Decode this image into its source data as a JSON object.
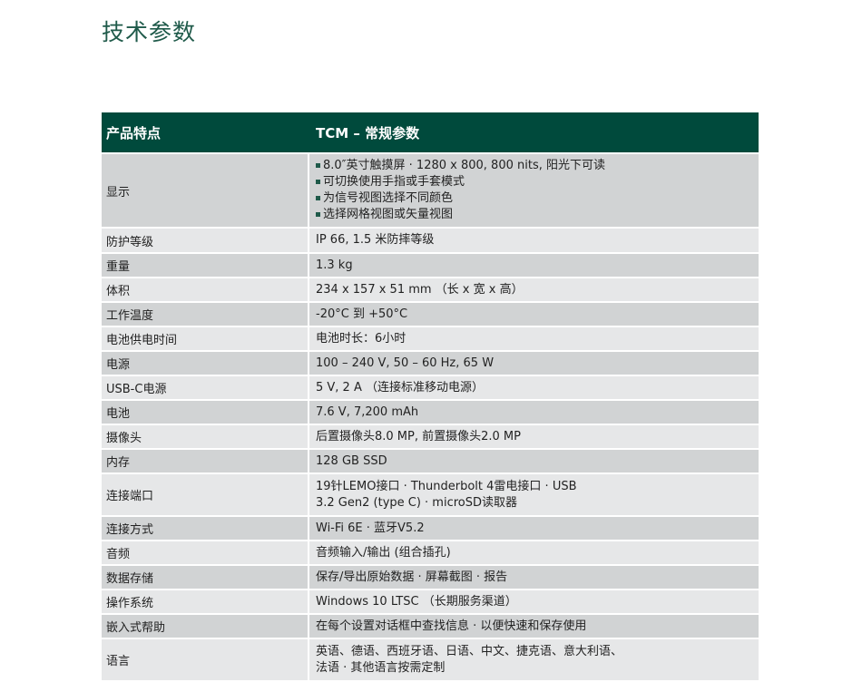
{
  "title": "技术参数",
  "table": {
    "headers": [
      "产品特点",
      "TCM – 常规参数"
    ],
    "rows": [
      {
        "label": "显示",
        "lines": [
          "8.0″英寸触摸屏 · 1280 x 800, 800 nits, 阳光下可读",
          "可切换使用手指或手套模式",
          "为信号视图选择不同颜色",
          "选择网格视图或矢量视图"
        ],
        "bulleted": true
      },
      {
        "label": "防护等级",
        "lines": [
          "IP 66, 1.5 米防摔等级"
        ]
      },
      {
        "label": "重量",
        "lines": [
          "1.3 kg"
        ]
      },
      {
        "label": "体积",
        "lines": [
          "234 x 157 x 51 mm （长 x 宽 x 高）"
        ]
      },
      {
        "label": "工作温度",
        "lines": [
          "-20°C 到 +50°C"
        ]
      },
      {
        "label": "电池供电时间",
        "lines": [
          "电池时长：6小时"
        ]
      },
      {
        "label": "电源",
        "lines": [
          "100 – 240 V, 50 – 60 Hz, 65 W"
        ]
      },
      {
        "label": "USB-C电源",
        "lines": [
          "5 V, 2 A （连接标准移动电源）"
        ]
      },
      {
        "label": "电池",
        "lines": [
          "7.6 V, 7,200 mAh"
        ]
      },
      {
        "label": "摄像头",
        "lines": [
          "后置摄像头8.0 MP, 前置摄像头2.0 MP"
        ]
      },
      {
        "label": "内存",
        "lines": [
          "128 GB SSD"
        ]
      },
      {
        "label": "连接端口",
        "lines": [
          "19针LEMO接口 · Thunderbolt 4雷电接口 · USB",
          "3.2 Gen2 (type C) · microSD读取器"
        ]
      },
      {
        "label": "连接方式",
        "lines": [
          "Wi-Fi 6E · 蓝牙V5.2"
        ]
      },
      {
        "label": "音频",
        "lines": [
          "音频输入/输出 (组合插孔)"
        ]
      },
      {
        "label": "数据存储",
        "lines": [
          "保存/导出原始数据 · 屏幕截图 · 报告"
        ]
      },
      {
        "label": "操作系统",
        "lines": [
          "Windows 10 LTSC （长期服务渠道）"
        ]
      },
      {
        "label": "嵌入式帮助",
        "lines": [
          "在每个设置对话框中查找信息 · 以便快速和保存使用"
        ]
      },
      {
        "label": "语言",
        "lines": [
          "英语、德语、西班牙语、日语、中文、捷克语、意大利语、",
          "法语 · 其他语言按需定制"
        ]
      }
    ]
  },
  "colors": {
    "header_bg": "#004a3c",
    "title": "#1f5a4a",
    "row_dark": "#d1d3d4",
    "row_light": "#e6e7e8"
  }
}
